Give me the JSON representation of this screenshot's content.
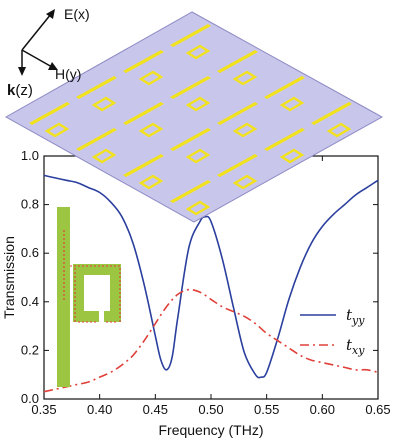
{
  "chart_data": {
    "type": "line",
    "xlabel": "Frequency (THz)",
    "ylabel": "Transmission",
    "xlim": [
      0.35,
      0.65
    ],
    "ylim": [
      0.0,
      1.0
    ],
    "xticks": [
      "0.35",
      "0.40",
      "0.45",
      "0.50",
      "0.55",
      "0.60",
      "0.65"
    ],
    "yticks": [
      "0.0",
      "0.2",
      "0.4",
      "0.6",
      "0.8",
      "1.0"
    ],
    "grid": false,
    "legend_position": "right",
    "series": [
      {
        "name": "t_yy",
        "color": "#2b3f9e",
        "style": "solid",
        "x": [
          0.35,
          0.36,
          0.37,
          0.38,
          0.39,
          0.4,
          0.41,
          0.42,
          0.43,
          0.44,
          0.45,
          0.455,
          0.46,
          0.465,
          0.47,
          0.48,
          0.49,
          0.495,
          0.5,
          0.51,
          0.52,
          0.53,
          0.54,
          0.545,
          0.55,
          0.56,
          0.57,
          0.58,
          0.59,
          0.6,
          0.61,
          0.62,
          0.63,
          0.64,
          0.65
        ],
        "y": [
          0.92,
          0.91,
          0.9,
          0.89,
          0.87,
          0.85,
          0.81,
          0.75,
          0.64,
          0.47,
          0.26,
          0.16,
          0.12,
          0.17,
          0.33,
          0.62,
          0.73,
          0.75,
          0.73,
          0.58,
          0.38,
          0.19,
          0.1,
          0.09,
          0.11,
          0.25,
          0.41,
          0.54,
          0.64,
          0.71,
          0.76,
          0.8,
          0.84,
          0.87,
          0.9
        ]
      },
      {
        "name": "t_xy",
        "color": "#e0403a",
        "style": "dash-dot",
        "x": [
          0.35,
          0.36,
          0.37,
          0.38,
          0.39,
          0.4,
          0.41,
          0.42,
          0.43,
          0.44,
          0.45,
          0.46,
          0.47,
          0.48,
          0.49,
          0.5,
          0.51,
          0.52,
          0.53,
          0.54,
          0.55,
          0.56,
          0.57,
          0.58,
          0.59,
          0.6,
          0.61,
          0.62,
          0.63,
          0.64,
          0.65
        ],
        "y": [
          0.03,
          0.04,
          0.05,
          0.06,
          0.07,
          0.09,
          0.11,
          0.14,
          0.18,
          0.24,
          0.31,
          0.38,
          0.43,
          0.45,
          0.44,
          0.41,
          0.38,
          0.36,
          0.34,
          0.31,
          0.27,
          0.24,
          0.21,
          0.18,
          0.16,
          0.15,
          0.14,
          0.13,
          0.12,
          0.12,
          0.11
        ]
      }
    ]
  },
  "legend": {
    "items": [
      {
        "base": "t",
        "sub": "yy",
        "color": "#2b3f9e",
        "dash": ""
      },
      {
        "base": "t",
        "sub": "xy",
        "color": "#e0403a",
        "dash": "9 4 2 4"
      }
    ]
  },
  "coordinate_labels": {
    "e": "E(x)",
    "h": "H(y)",
    "k_bold": "k",
    "k_rest": "(z)"
  },
  "colors": {
    "metasurface_plate": "#c8c6ea",
    "gold_resonator": "#f2e21e",
    "inset_substrate": "#9cc641",
    "field_arrows": "#e33b3b"
  }
}
